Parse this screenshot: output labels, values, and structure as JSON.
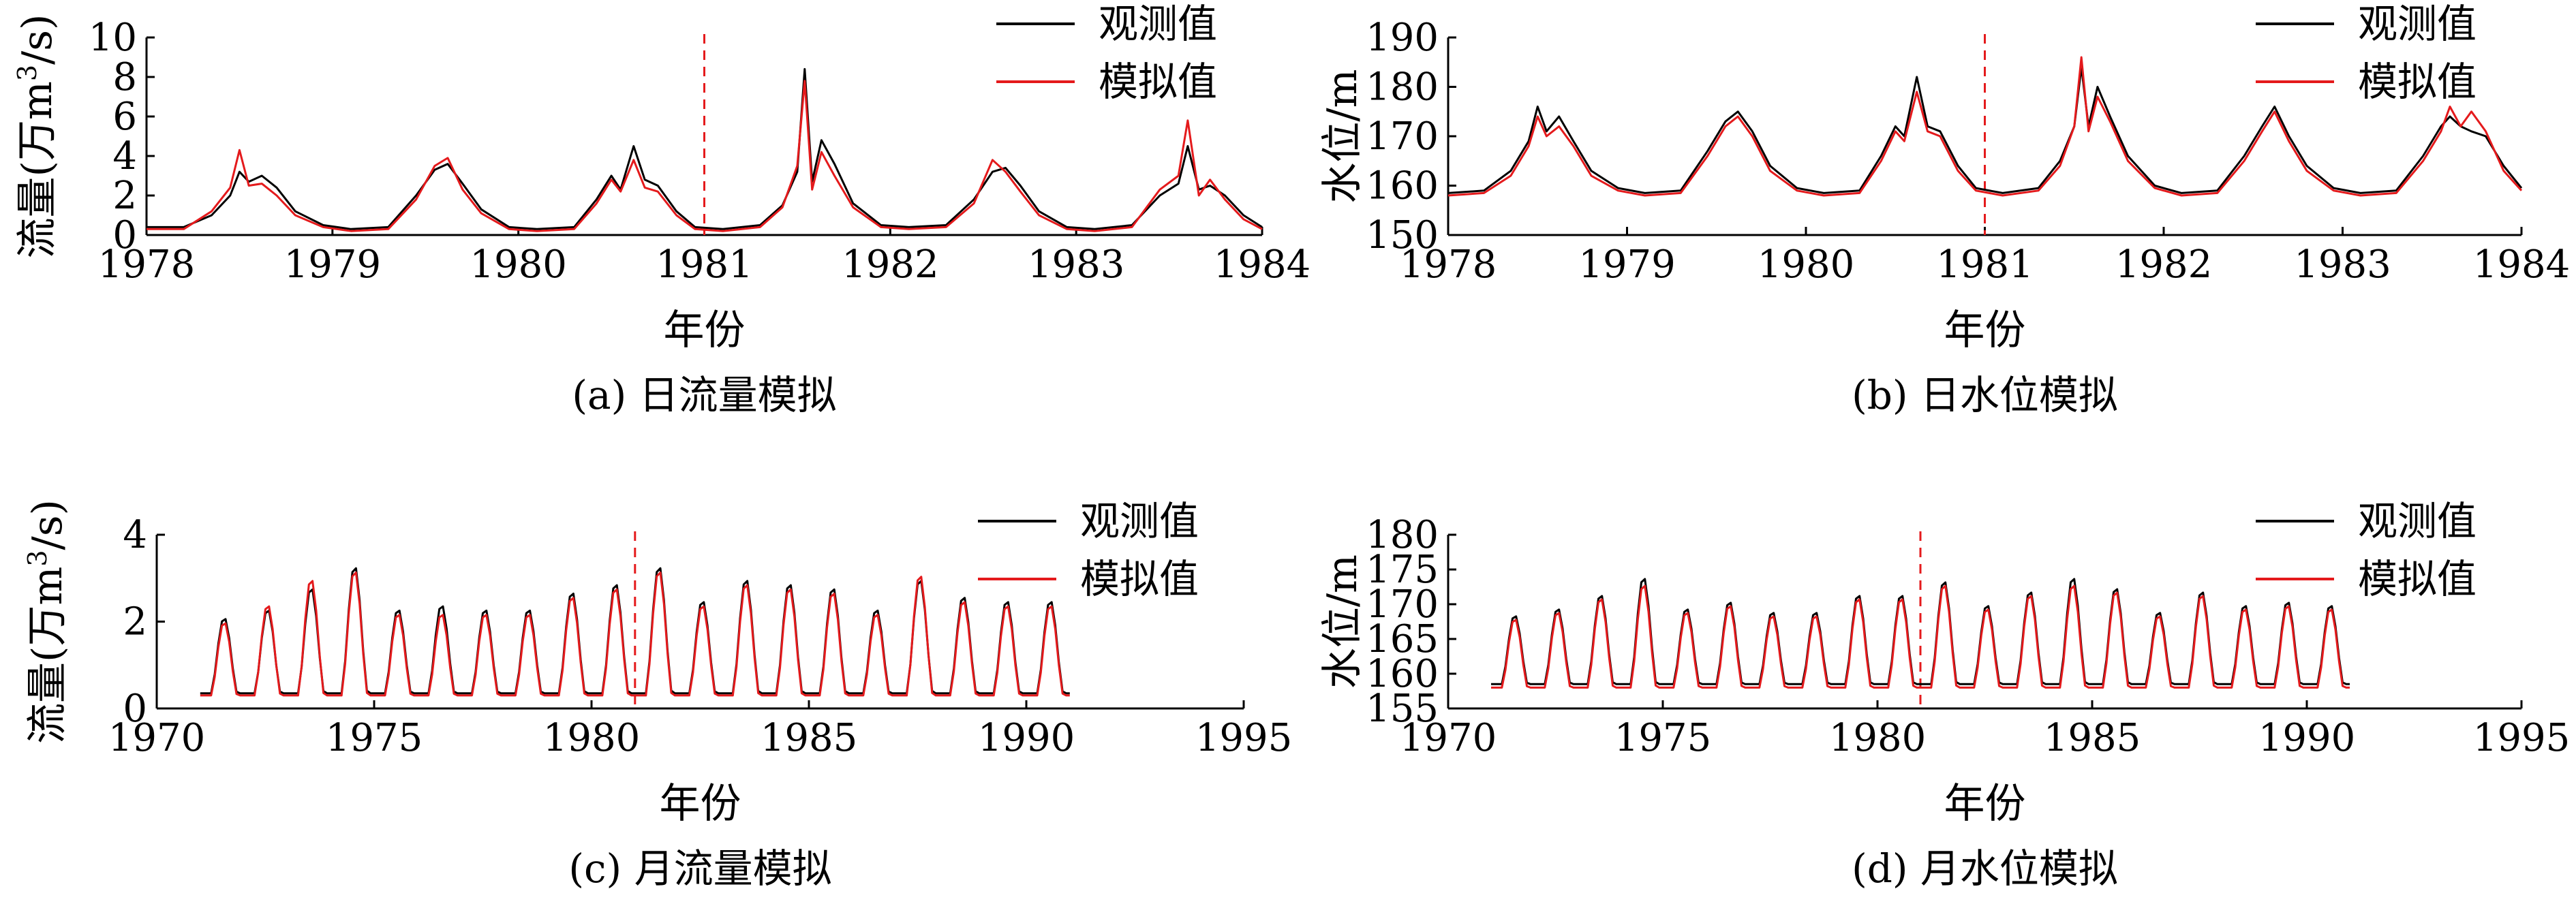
{
  "chart_data": [
    {
      "id": "a",
      "type": "line",
      "title": "(a) 日流量模拟",
      "xlabel": "年份",
      "ylabel": "流量(万m³/s)",
      "ylabel_main": "流量(万m",
      "ylabel_sup": "3",
      "ylabel_tail": "/s)",
      "xlim": [
        1978,
        1984
      ],
      "ylim": [
        0,
        10
      ],
      "xticks": [
        1978,
        1979,
        1980,
        1981,
        1982,
        1983,
        1984
      ],
      "yticks": [
        0,
        2,
        4,
        6,
        8,
        10
      ],
      "split_x": 1981,
      "legend": [
        "观测值",
        "模拟值"
      ],
      "legend_loc": "top-right",
      "series": [
        {
          "name": "观测值",
          "color": "#000000",
          "x": [
            1978.0,
            1978.2,
            1978.35,
            1978.45,
            1978.5,
            1978.55,
            1978.62,
            1978.7,
            1978.8,
            1978.95,
            1979.1,
            1979.3,
            1979.45,
            1979.55,
            1979.62,
            1979.7,
            1979.8,
            1979.95,
            1980.1,
            1980.3,
            1980.42,
            1980.5,
            1980.55,
            1980.62,
            1980.68,
            1980.75,
            1980.85,
            1980.95,
            1981.1,
            1981.3,
            1981.42,
            1981.5,
            1981.54,
            1981.58,
            1981.63,
            1981.7,
            1981.8,
            1981.95,
            1982.1,
            1982.3,
            1982.45,
            1982.55,
            1982.62,
            1982.7,
            1982.8,
            1982.95,
            1983.1,
            1983.3,
            1983.45,
            1983.55,
            1983.6,
            1983.66,
            1983.72,
            1983.8,
            1983.9,
            1984.0
          ],
          "y": [
            0.4,
            0.4,
            1.0,
            2.0,
            3.2,
            2.7,
            3.0,
            2.4,
            1.2,
            0.5,
            0.3,
            0.4,
            2.0,
            3.3,
            3.6,
            2.6,
            1.3,
            0.4,
            0.3,
            0.4,
            1.8,
            3.0,
            2.3,
            4.5,
            2.8,
            2.5,
            1.2,
            0.4,
            0.3,
            0.5,
            1.5,
            3.2,
            8.4,
            2.7,
            4.8,
            3.6,
            1.6,
            0.5,
            0.4,
            0.5,
            1.8,
            3.2,
            3.4,
            2.5,
            1.2,
            0.4,
            0.3,
            0.5,
            2.0,
            2.6,
            4.5,
            2.3,
            2.5,
            2.0,
            1.0,
            0.4
          ]
        },
        {
          "name": "模拟值",
          "color": "#e41a1c",
          "x": [
            1978.0,
            1978.2,
            1978.35,
            1978.45,
            1978.5,
            1978.55,
            1978.62,
            1978.7,
            1978.8,
            1978.95,
            1979.1,
            1979.3,
            1979.45,
            1979.55,
            1979.62,
            1979.7,
            1979.8,
            1979.95,
            1980.1,
            1980.3,
            1980.42,
            1980.5,
            1980.55,
            1980.62,
            1980.68,
            1980.75,
            1980.85,
            1980.95,
            1981.1,
            1981.3,
            1981.42,
            1981.5,
            1981.54,
            1981.58,
            1981.63,
            1981.7,
            1981.8,
            1981.95,
            1982.1,
            1982.3,
            1982.45,
            1982.55,
            1982.62,
            1982.7,
            1982.8,
            1982.95,
            1983.1,
            1983.3,
            1983.45,
            1983.55,
            1983.6,
            1983.66,
            1983.72,
            1983.8,
            1983.9,
            1984.0
          ],
          "y": [
            0.3,
            0.3,
            1.2,
            2.4,
            4.3,
            2.5,
            2.6,
            2.0,
            1.0,
            0.4,
            0.2,
            0.3,
            1.8,
            3.5,
            3.9,
            2.3,
            1.1,
            0.3,
            0.2,
            0.3,
            1.6,
            2.8,
            2.2,
            3.8,
            2.4,
            2.2,
            1.0,
            0.3,
            0.2,
            0.4,
            1.4,
            3.5,
            7.8,
            2.3,
            4.2,
            3.0,
            1.4,
            0.4,
            0.3,
            0.4,
            1.6,
            3.8,
            3.2,
            2.2,
            1.0,
            0.3,
            0.2,
            0.4,
            2.3,
            3.0,
            5.8,
            2.0,
            2.8,
            1.8,
            0.8,
            0.3
          ]
        }
      ]
    },
    {
      "id": "b",
      "type": "line",
      "title": "(b) 日水位模拟",
      "xlabel": "年份",
      "ylabel": "水位/m",
      "ylabel_main": "水位/m",
      "ylabel_sup": "",
      "ylabel_tail": "",
      "xlim": [
        1978,
        1984
      ],
      "ylim": [
        150,
        190
      ],
      "xticks": [
        1978,
        1979,
        1980,
        1981,
        1982,
        1983,
        1984
      ],
      "yticks": [
        150,
        160,
        170,
        180,
        190
      ],
      "split_x": 1981,
      "legend": [
        "观测值",
        "模拟值"
      ],
      "legend_loc": "top-right",
      "series": [
        {
          "name": "观测值",
          "color": "#000000",
          "x": [
            1978.0,
            1978.2,
            1978.35,
            1978.45,
            1978.5,
            1978.55,
            1978.62,
            1978.7,
            1978.8,
            1978.95,
            1979.1,
            1979.3,
            1979.45,
            1979.55,
            1979.62,
            1979.7,
            1979.8,
            1979.95,
            1980.1,
            1980.3,
            1980.42,
            1980.5,
            1980.55,
            1980.62,
            1980.68,
            1980.75,
            1980.85,
            1980.95,
            1981.1,
            1981.3,
            1981.42,
            1981.5,
            1981.54,
            1981.58,
            1981.63,
            1981.7,
            1981.8,
            1981.95,
            1982.1,
            1982.3,
            1982.45,
            1982.55,
            1982.62,
            1982.7,
            1982.8,
            1982.95,
            1983.1,
            1983.3,
            1983.45,
            1983.55,
            1983.6,
            1983.66,
            1983.72,
            1983.8,
            1983.9,
            1984.0
          ],
          "y": [
            158.5,
            159,
            163,
            169,
            176,
            171,
            174,
            169,
            163,
            159.5,
            158.5,
            159,
            167,
            173,
            175,
            171,
            164,
            159.5,
            158.5,
            159,
            166,
            172,
            170,
            182,
            172,
            171,
            164,
            159.5,
            158.5,
            159.5,
            165,
            172,
            184,
            172,
            180,
            174,
            166,
            160,
            158.5,
            159,
            166,
            172,
            176,
            170,
            164,
            159.5,
            158.5,
            159,
            166,
            172,
            174,
            172,
            171,
            170,
            164,
            159.5
          ]
        },
        {
          "name": "模拟值",
          "color": "#e41a1c",
          "x": [
            1978.0,
            1978.2,
            1978.35,
            1978.45,
            1978.5,
            1978.55,
            1978.62,
            1978.7,
            1978.8,
            1978.95,
            1979.1,
            1979.3,
            1979.45,
            1979.55,
            1979.62,
            1979.7,
            1979.8,
            1979.95,
            1980.1,
            1980.3,
            1980.42,
            1980.5,
            1980.55,
            1980.62,
            1980.68,
            1980.75,
            1980.85,
            1980.95,
            1981.1,
            1981.3,
            1981.42,
            1981.5,
            1981.54,
            1981.58,
            1981.63,
            1981.7,
            1981.8,
            1981.95,
            1982.1,
            1982.3,
            1982.45,
            1982.55,
            1982.62,
            1982.7,
            1982.8,
            1982.95,
            1983.1,
            1983.3,
            1983.45,
            1983.55,
            1983.6,
            1983.66,
            1983.72,
            1983.8,
            1983.9,
            1984.0
          ],
          "y": [
            158,
            158.5,
            162,
            168,
            174,
            170,
            172,
            168,
            162,
            159,
            158,
            158.5,
            166,
            172,
            174,
            170,
            163,
            159,
            158,
            158.5,
            165,
            171,
            169,
            179,
            171,
            170,
            163,
            159,
            158,
            159,
            164,
            172,
            186,
            171,
            178,
            173,
            165,
            159.5,
            158,
            158.5,
            165,
            171,
            175,
            169,
            163,
            159,
            158,
            158.5,
            165,
            171,
            176,
            172,
            175,
            171,
            163,
            159
          ]
        }
      ]
    },
    {
      "id": "c",
      "type": "line",
      "title": "(c) 月流量模拟",
      "xlabel": "年份",
      "ylabel": "流量(万m³/s)",
      "ylabel_main": "流量(万m",
      "ylabel_sup": "3",
      "ylabel_tail": "/s)",
      "xlim": [
        1970,
        1995
      ],
      "ylim": [
        0,
        4
      ],
      "xticks": [
        1970,
        1975,
        1980,
        1985,
        1990,
        1995
      ],
      "yticks": [
        0,
        2,
        4
      ],
      "split_x": 1981,
      "legend": [
        "观测值",
        "模拟值"
      ],
      "legend_loc": "top-right",
      "peaks_obs": [
        2.1,
        2.3,
        2.8,
        3.3,
        2.3,
        2.4,
        2.3,
        2.3,
        2.7,
        2.9,
        3.3,
        2.5,
        3.0,
        2.9,
        2.8,
        2.3,
        3.0,
        2.6,
        2.5,
        2.5
      ],
      "peaks_sim": [
        2.0,
        2.4,
        3.0,
        3.2,
        2.2,
        2.2,
        2.2,
        2.2,
        2.6,
        2.8,
        3.2,
        2.4,
        2.9,
        2.8,
        2.7,
        2.2,
        3.1,
        2.5,
        2.4,
        2.4
      ],
      "series": [
        {
          "name": "观测值",
          "color": "#000000",
          "x_start": 1971.0,
          "x_end": 1991.0,
          "base": 0.35
        },
        {
          "name": "模拟值",
          "color": "#e41a1c",
          "x_start": 1971.0,
          "x_end": 1991.0,
          "base": 0.3
        }
      ]
    },
    {
      "id": "d",
      "type": "line",
      "title": "(d) 月水位模拟",
      "xlabel": "年份",
      "ylabel": "水位/m",
      "ylabel_main": "水位/m",
      "ylabel_sup": "",
      "ylabel_tail": "",
      "xlim": [
        1970,
        1995
      ],
      "ylim": [
        155,
        180
      ],
      "xticks": [
        1970,
        1975,
        1980,
        1985,
        1990,
        1995
      ],
      "yticks": [
        155,
        160,
        165,
        170,
        175,
        180
      ],
      "split_x": 1981,
      "legend": [
        "观测值",
        "模拟值"
      ],
      "legend_loc": "top-right",
      "peaks_obs": [
        168.5,
        169.5,
        171.5,
        174.0,
        169.5,
        170.5,
        169.0,
        169.0,
        171.5,
        171.5,
        173.5,
        170.0,
        172.0,
        174.0,
        172.5,
        169.0,
        172.0,
        170.0,
        170.5,
        170.0
      ],
      "peaks_sim": [
        168.0,
        169.0,
        171.0,
        173.0,
        169.0,
        170.0,
        168.5,
        168.5,
        171.0,
        171.0,
        173.0,
        169.5,
        171.5,
        173.0,
        172.0,
        168.5,
        171.5,
        169.5,
        170.0,
        169.5
      ],
      "series": [
        {
          "name": "观测值",
          "color": "#000000",
          "x_start": 1971.0,
          "x_end": 1991.0,
          "base": 158.5
        },
        {
          "name": "模拟值",
          "color": "#e41a1c",
          "x_start": 1971.0,
          "x_end": 1991.0,
          "base": 158.0
        }
      ]
    }
  ]
}
